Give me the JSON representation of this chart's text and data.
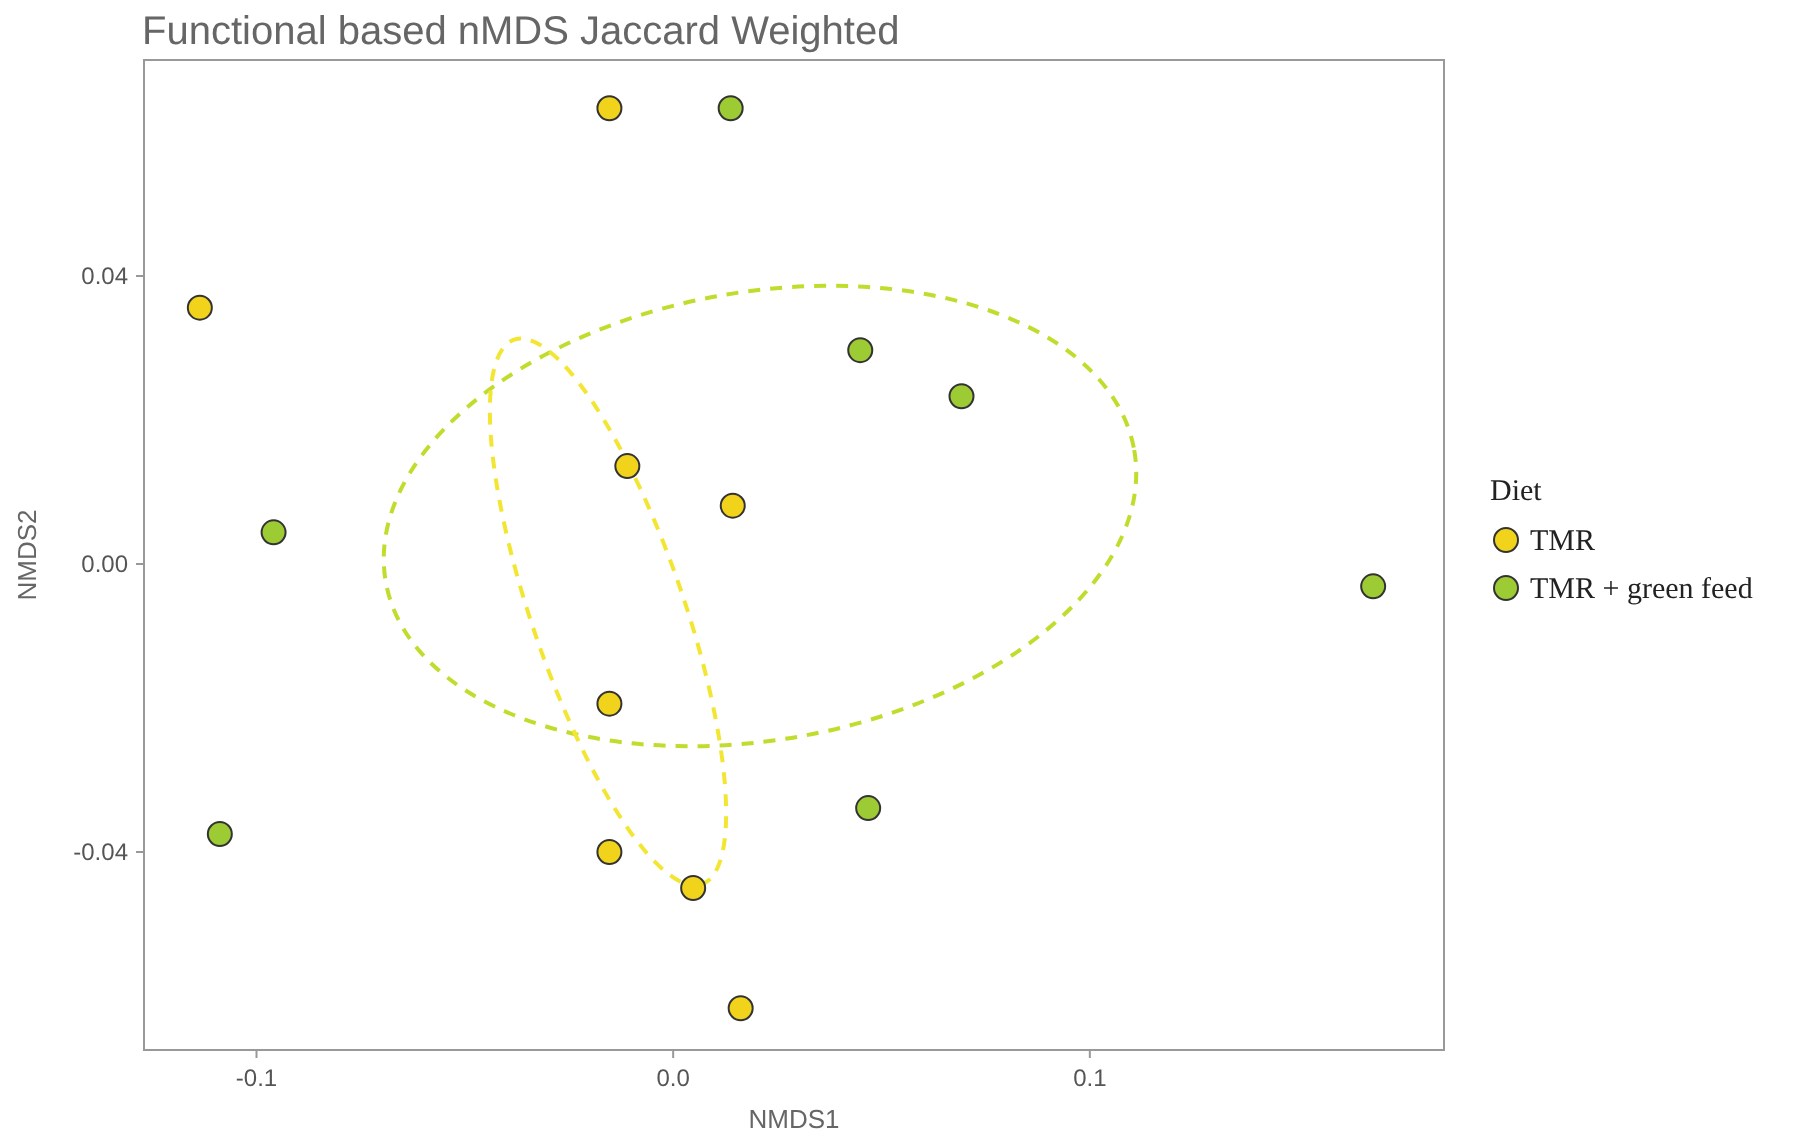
{
  "chart_data": {
    "type": "scatter",
    "title": "Functional based nMDS Jaccard Weighted",
    "xlabel": "NMDS1",
    "ylabel": "NMDS2",
    "legend_title": "Diet",
    "legend": "right",
    "grid": false,
    "marker": "circle",
    "xlim": [
      -0.127,
      0.185
    ],
    "ylim": [
      -0.0675,
      0.07
    ],
    "xticks": [
      {
        "value": -0.1,
        "label": "-0.1"
      },
      {
        "value": 0,
        "label": "0.0"
      },
      {
        "value": 0.1,
        "label": "0.1"
      }
    ],
    "yticks": [
      {
        "value": -0.04,
        "label": "-0.04"
      },
      {
        "value": 0,
        "label": "0.00"
      },
      {
        "value": 0.04,
        "label": "0.04"
      }
    ],
    "series": [
      {
        "name": "TMR",
        "color": "#f2d31b",
        "x": [
          -0.0153,
          -0.1136,
          -0.011,
          0.0143,
          -0.0153,
          -0.0153,
          0.0048,
          0.0162
        ],
        "values": [
          0.0633,
          0.0356,
          0.0136,
          0.0081,
          -0.0194,
          -0.04,
          -0.045,
          -0.0617
        ]
      },
      {
        "name": "TMR + green feed",
        "color": "#9ccb34",
        "x": [
          0.0138,
          0.0449,
          0.0692,
          -0.0959,
          0.168,
          -0.1088,
          0.0468
        ],
        "values": [
          0.0633,
          0.0297,
          0.0233,
          0.0044,
          -0.0031,
          -0.0375,
          -0.0339
        ]
      }
    ]
  }
}
